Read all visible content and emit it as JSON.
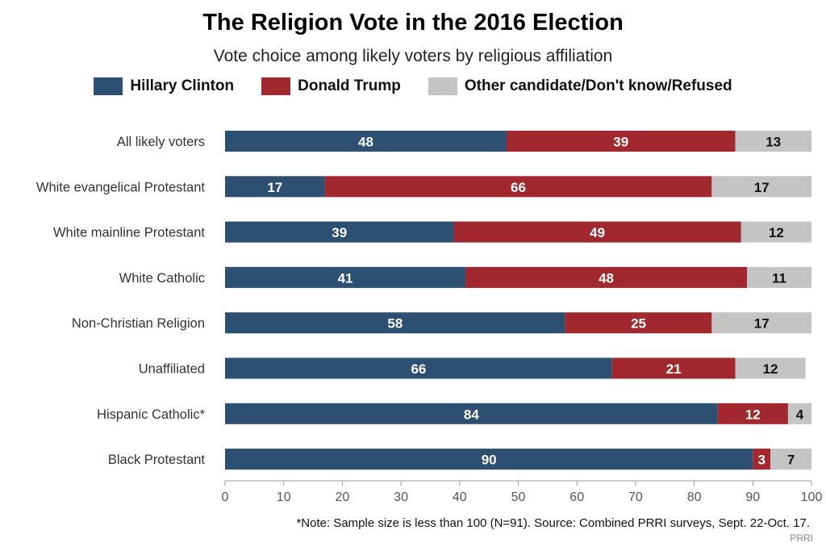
{
  "title": "The Religion Vote in the 2016 Election",
  "subtitle": "Vote choice among likely voters by religious affiliation",
  "legend": [
    {
      "label": "Hillary Clinton",
      "color": "#2c4f72"
    },
    {
      "label": "Donald Trump",
      "color": "#a1282f"
    },
    {
      "label": "Other candidate/Don't know/Refused",
      "color": "#c4c4c4"
    }
  ],
  "note": "*Note: Sample size is less than 100 (N=91). Source: Combined PRRI surveys, Sept. 22-Oct. 17.",
  "brand": "PRRI",
  "chart_data": {
    "type": "bar",
    "orientation": "horizontal",
    "stacked": true,
    "categories": [
      "All likely voters",
      "White evangelical Protestant",
      "White mainline Protestant",
      "White Catholic",
      "Non-Christian Religion",
      "Unaffiliated",
      "Hispanic Catholic*",
      "Black Protestant"
    ],
    "series": [
      {
        "name": "Hillary Clinton",
        "color": "#2c4f72",
        "label_color": "#ffffff",
        "values": [
          48,
          17,
          39,
          41,
          58,
          66,
          84,
          90
        ]
      },
      {
        "name": "Donald Trump",
        "color": "#a1282f",
        "label_color": "#ffffff",
        "values": [
          39,
          66,
          49,
          48,
          25,
          21,
          12,
          3
        ]
      },
      {
        "name": "Other candidate/Don't know/Refused",
        "color": "#c4c4c4",
        "label_color": "#111111",
        "values": [
          13,
          17,
          12,
          11,
          17,
          12,
          4,
          7
        ]
      }
    ],
    "xlim": [
      0,
      100
    ],
    "xticks": [
      "0",
      "10",
      "20",
      "30",
      "40",
      "50",
      "60",
      "70",
      "80",
      "90",
      "100"
    ],
    "grid": false,
    "legend_position": "top"
  }
}
